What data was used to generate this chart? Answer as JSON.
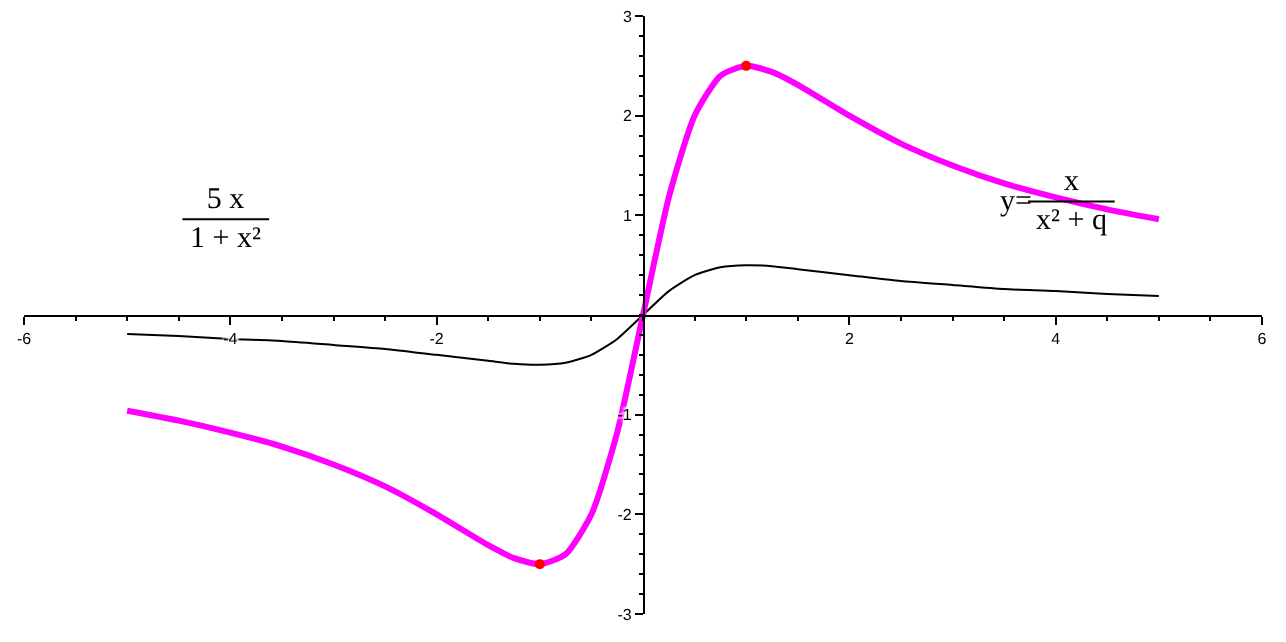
{
  "chart_data": {
    "type": "line",
    "x": [
      -5,
      -4.5,
      -4,
      -3.5,
      -3,
      -2.5,
      -2,
      -1.5,
      -1.25,
      -1,
      -0.75,
      -0.5,
      -0.25,
      0,
      0.25,
      0.5,
      0.75,
      1,
      1.25,
      1.5,
      2,
      2.5,
      3,
      3.5,
      4,
      4.5,
      5
    ],
    "series": [
      {
        "color": "#000000",
        "values": [
          -0.19,
          -0.21,
          -0.24,
          -0.26,
          -0.3,
          -0.34,
          -0.4,
          -0.46,
          -0.49,
          -0.5,
          -0.48,
          -0.4,
          -0.24,
          0,
          0.24,
          0.4,
          0.48,
          0.5,
          0.49,
          0.46,
          0.4,
          0.34,
          0.3,
          0.26,
          0.24,
          0.21,
          0.19
        ]
      },
      {
        "color": "#ff00ff",
        "values": [
          -0.96,
          -1.06,
          -1.18,
          -1.32,
          -1.5,
          -1.72,
          -2.0,
          -2.31,
          -2.44,
          -2.5,
          -2.4,
          -2.0,
          -1.18,
          0,
          1.18,
          2.0,
          2.4,
          2.5,
          2.44,
          2.31,
          2.0,
          1.72,
          1.5,
          1.32,
          1.18,
          1.06,
          0.96
        ]
      },
      {
        "type": "scatter",
        "color": "#ff0000",
        "marker": "circle",
        "x": [
          -1,
          1
        ],
        "values": [
          -2.5,
          2.5
        ]
      }
    ],
    "xlim": [
      -6,
      6
    ],
    "ylim": [
      -3,
      3
    ],
    "xticks": [
      -6,
      -4,
      -2,
      2,
      4,
      6
    ],
    "yticks": [
      -3,
      -2,
      -1,
      1,
      2,
      3
    ],
    "annotations": [
      "5 x\n1 + x²",
      "y=",
      "x\nx² + q"
    ],
    "grid": false
  }
}
